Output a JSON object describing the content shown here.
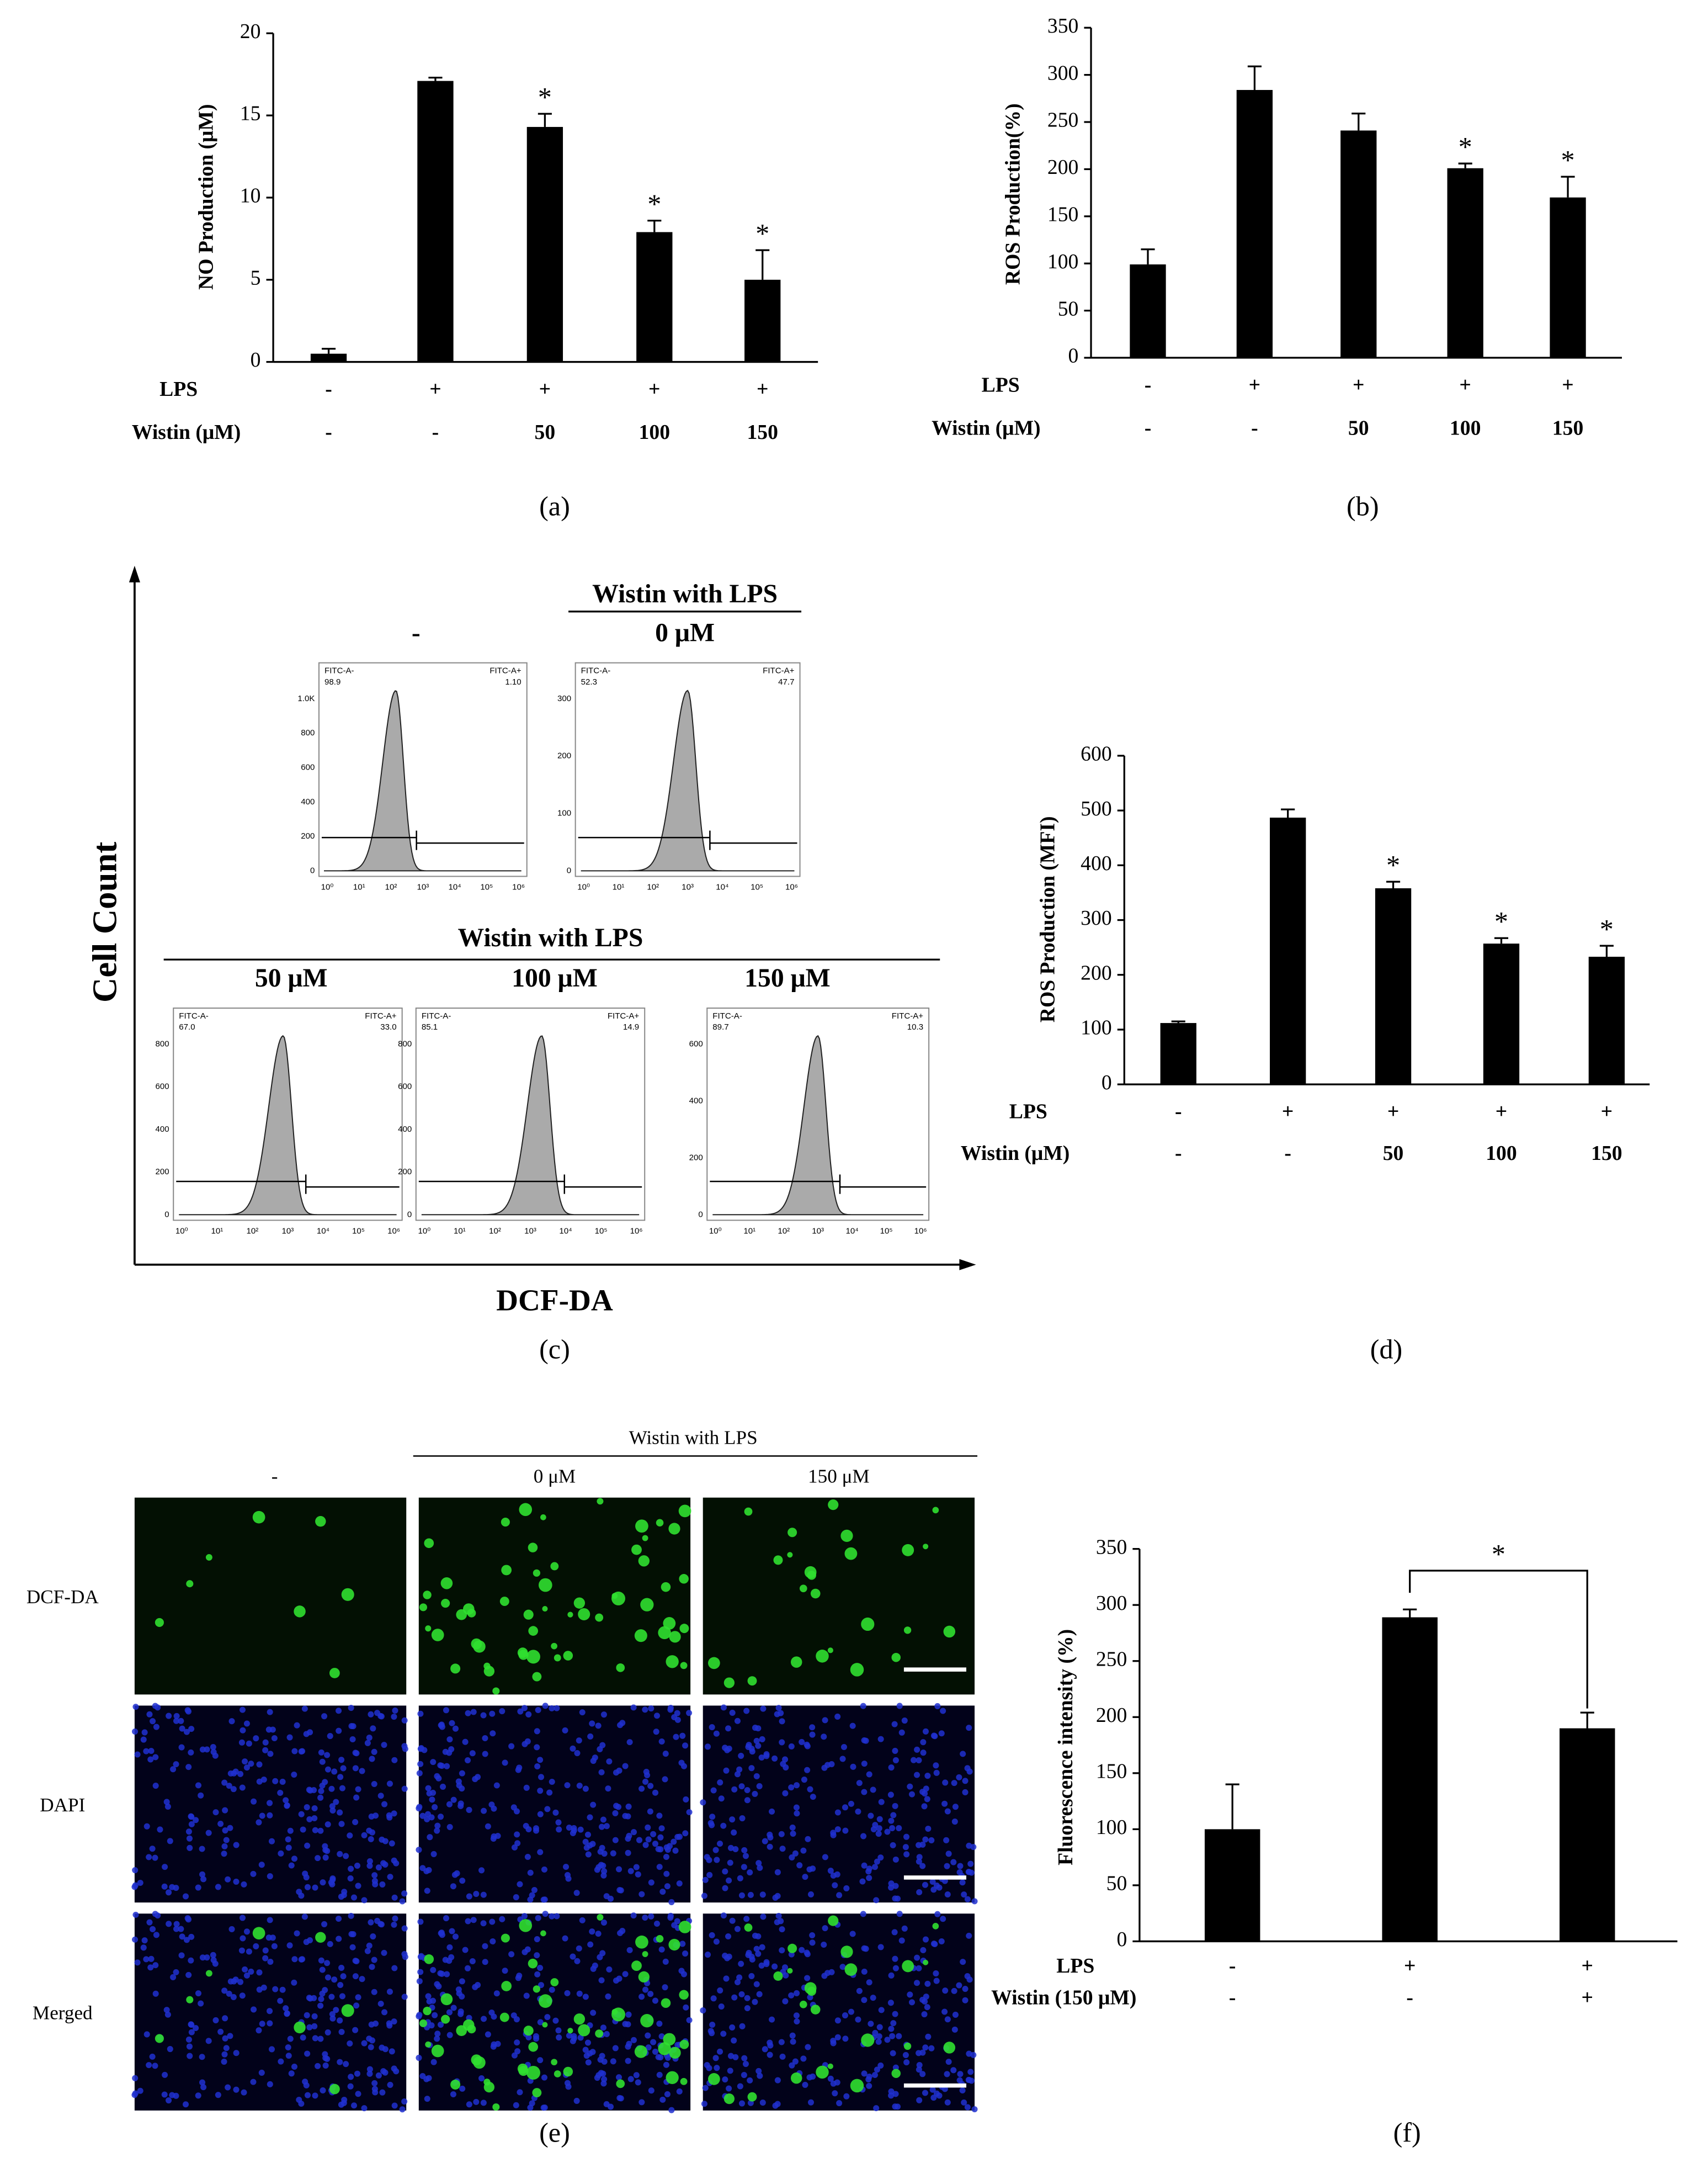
{
  "chart_data": [
    {
      "type": "bar",
      "panel_label": "(a)",
      "y_label": "NO Production (μM)",
      "ylim": [
        0,
        20
      ],
      "yticks": [
        0,
        5,
        10,
        15,
        20
      ],
      "color": "#000000",
      "values": [
        0.5,
        17.1,
        14.3,
        7.9,
        5.0
      ],
      "errors": [
        0.3,
        0.2,
        0.8,
        0.7,
        1.8
      ],
      "annotations": [
        {
          "text": "*",
          "index": 2
        },
        {
          "text": "*",
          "index": 3
        },
        {
          "text": "*",
          "index": 4
        }
      ],
      "rows": [
        {
          "label": "LPS",
          "values": [
            "-",
            "+",
            "+",
            "+",
            "+"
          ]
        },
        {
          "label": "Wistin (μM)",
          "values": [
            "-",
            "-",
            "50",
            "100",
            "150"
          ]
        }
      ]
    },
    {
      "type": "bar",
      "panel_label": "(b)",
      "y_label": "ROS Production(%)",
      "ylim": [
        0,
        350
      ],
      "yticks": [
        0,
        50,
        100,
        150,
        200,
        250,
        300,
        350
      ],
      "color": "#000000",
      "values": [
        99,
        284,
        241,
        201,
        170
      ],
      "errors": [
        16,
        25,
        18,
        5,
        22
      ],
      "annotations": [
        {
          "text": "*",
          "index": 3
        },
        {
          "text": "*",
          "index": 4
        }
      ],
      "rows": [
        {
          "label": "LPS",
          "values": [
            "-",
            "+",
            "+",
            "+",
            "+"
          ]
        },
        {
          "label": "Wistin (μM)",
          "values": [
            "-",
            "-",
            "50",
            "100",
            "150"
          ]
        }
      ]
    },
    {
      "type": "bar",
      "panel_label": "(d)",
      "y_label": "ROS Production (MFI)",
      "ylim": [
        0,
        600
      ],
      "yticks": [
        0,
        100,
        200,
        300,
        400,
        500,
        600
      ],
      "color": "#000000",
      "values": [
        112,
        487,
        358,
        257,
        233
      ],
      "errors": [
        3,
        15,
        12,
        10,
        20
      ],
      "annotations": [
        {
          "text": "*",
          "index": 2
        },
        {
          "text": "*",
          "index": 3
        },
        {
          "text": "*",
          "index": 4
        }
      ],
      "rows": [
        {
          "label": "LPS",
          "values": [
            "-",
            "+",
            "+",
            "+",
            "+"
          ]
        },
        {
          "label": "Wistin (μM)",
          "values": [
            "-",
            "-",
            "50",
            "100",
            "150"
          ]
        }
      ]
    },
    {
      "type": "bar",
      "panel_label": "(f)",
      "y_label": "Fluorescence intensity (%)",
      "ylim": [
        0,
        350
      ],
      "yticks": [
        0,
        50,
        100,
        150,
        200,
        250,
        300,
        350
      ],
      "color": "#000000",
      "values": [
        100,
        289,
        190
      ],
      "errors": [
        40,
        7,
        14
      ],
      "annotations": [
        {
          "text": "*",
          "from": 1,
          "to": 2
        }
      ],
      "rows": [
        {
          "label": "LPS",
          "values": [
            "-",
            "+",
            "+"
          ]
        },
        {
          "label": "Wistin (150 μM)",
          "values": [
            "-",
            "-",
            "+"
          ]
        }
      ]
    }
  ],
  "flow_panel": {
    "panel_label": "(c)",
    "y_title": "Cell Count",
    "x_title": "DCF-DA",
    "group_title": "Wistin with LPS",
    "plots": [
      {
        "title": "-",
        "neg_label": "FITC-A-",
        "pos_label": "FITC-A+",
        "neg": "98.9",
        "pos": "1.10",
        "yticks": [
          "0",
          "200",
          "400",
          "600",
          "800",
          "1.0K"
        ]
      },
      {
        "title": "0 μM",
        "neg_label": "FITC-A-",
        "pos_label": "FITC-A+",
        "neg": "52.3",
        "pos": "47.7",
        "yticks": [
          "0",
          "100",
          "200",
          "300"
        ]
      },
      {
        "title": "50 μM",
        "neg_label": "FITC-A-",
        "pos_label": "FITC-A+",
        "neg": "67.0",
        "pos": "33.0",
        "yticks": [
          "0",
          "200",
          "400",
          "600",
          "800"
        ]
      },
      {
        "title": "100 μM",
        "neg_label": "FITC-A-",
        "pos_label": "FITC-A+",
        "neg": "85.1",
        "pos": "14.9",
        "yticks": [
          "0",
          "200",
          "400",
          "600",
          "800"
        ]
      },
      {
        "title": "150 μM",
        "neg_label": "FITC-A-",
        "pos_label": "FITC-A+",
        "neg": "89.7",
        "pos": "10.3",
        "yticks": [
          "0",
          "200",
          "400",
          "600"
        ]
      }
    ],
    "xticks": [
      "10⁰",
      "10¹",
      "10²",
      "10³",
      "10⁴",
      "10⁵",
      "10⁶"
    ]
  },
  "image_panel": {
    "panel_label": "(e)",
    "group_title": "Wistin with LPS",
    "columns": [
      "-",
      "0 μM",
      "150 μM"
    ],
    "rows": [
      "DCF-DA",
      "DAPI",
      "Merged"
    ]
  }
}
